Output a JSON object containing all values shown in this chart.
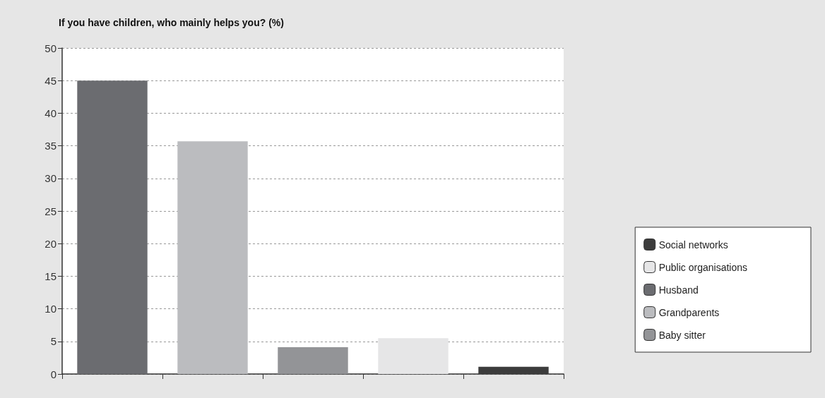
{
  "chart_data": {
    "type": "bar",
    "title": "If you have children, who mainly helps you? (%)",
    "categories": [
      null,
      null,
      null,
      null,
      null
    ],
    "series": [
      {
        "name": "Social networks",
        "color": "#3c3c3c",
        "values": [
          null,
          null,
          null,
          null,
          1.1
        ]
      },
      {
        "name": "Public organisations",
        "color": "#e6e6e7",
        "values": [
          null,
          null,
          null,
          5.5,
          null
        ]
      },
      {
        "name": "Husband",
        "color": "#6b6c70",
        "values": [
          45,
          null,
          null,
          null,
          null
        ]
      },
      {
        "name": "Grandparents",
        "color": "#bbbcbf",
        "values": [
          null,
          35.7,
          null,
          null,
          null
        ]
      },
      {
        "name": "Baby sitter",
        "color": "#939497",
        "values": [
          null,
          null,
          4.1,
          null,
          null
        ]
      }
    ],
    "ylim": [
      0,
      50
    ],
    "yticks": [
      0,
      5,
      10,
      15,
      20,
      25,
      30,
      35,
      40,
      45,
      50
    ],
    "grid": "y",
    "legend": "right"
  }
}
